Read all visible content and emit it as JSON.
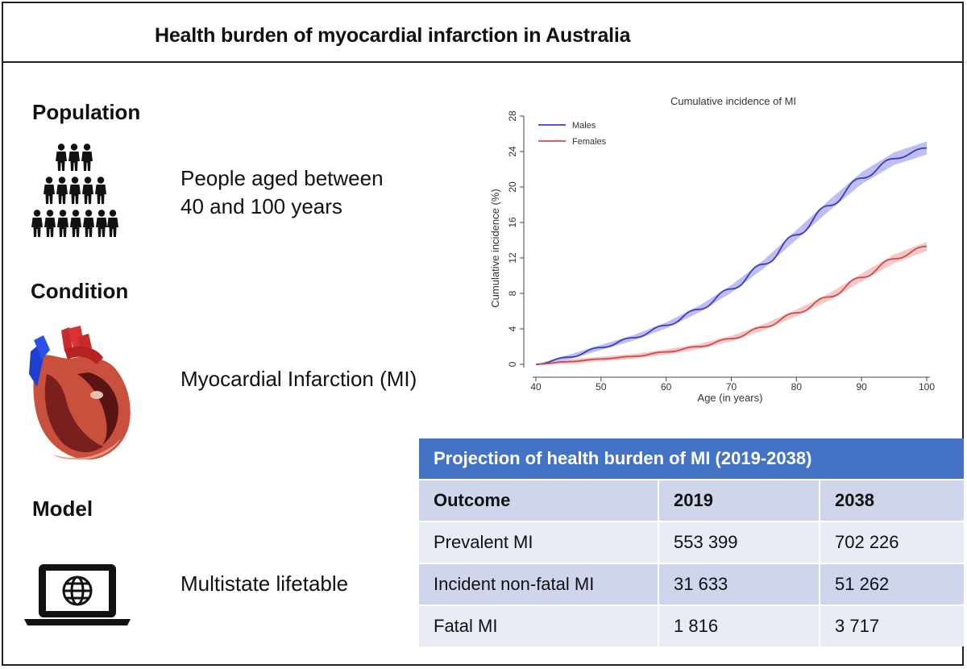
{
  "title": "Health burden of myocardial infarction in Australia",
  "sections": {
    "population": {
      "label": "Population",
      "text_line1": "People aged between",
      "text_line2": "40 and 100 years",
      "icon": "people-pyramid-icon"
    },
    "condition": {
      "label": "Condition",
      "text": "Myocardial Infarction (MI)",
      "icon": "heart-icon"
    },
    "model": {
      "label": "Model",
      "text": "Multistate lifetable",
      "icon": "laptop-globe-icon"
    }
  },
  "chart_data": {
    "type": "line",
    "title": "Cumulative incidence of MI",
    "xlabel": "Age (in years)",
    "ylabel": "Cumulative incidence (%)",
    "xlim": [
      40,
      100
    ],
    "ylim": [
      0,
      28
    ],
    "xticks": [
      40,
      50,
      60,
      70,
      80,
      90,
      100
    ],
    "yticks": [
      0,
      4,
      8,
      12,
      16,
      20,
      24,
      28
    ],
    "legend_position": "top-left",
    "grid": false,
    "x": [
      40,
      45,
      50,
      55,
      60,
      65,
      70,
      75,
      80,
      85,
      90,
      95,
      100
    ],
    "series": [
      {
        "name": "Males",
        "color": "#3b3bc4",
        "band_color": "#a8a8ec",
        "values": [
          0.0,
          0.8,
          1.9,
          3.0,
          4.4,
          6.2,
          8.5,
          11.3,
          14.6,
          17.9,
          21.0,
          23.2,
          24.4
        ]
      },
      {
        "name": "Females",
        "color": "#d24a4a",
        "band_color": "#f2b5b5",
        "values": [
          0.0,
          0.3,
          0.6,
          0.9,
          1.4,
          2.0,
          2.9,
          4.2,
          5.8,
          7.6,
          9.8,
          11.9,
          13.3
        ]
      }
    ]
  },
  "table": {
    "title": "Projection of health burden of MI (2019-2038)",
    "headers": [
      "Outcome",
      "2019",
      "2038"
    ],
    "rows": [
      [
        "Prevalent MI",
        "553 399",
        "702 226"
      ],
      [
        "Incident non-fatal MI",
        "31 633",
        "51 262"
      ],
      [
        "Fatal MI",
        "1 816",
        "3 717"
      ]
    ],
    "header_color": "#4472c4"
  }
}
